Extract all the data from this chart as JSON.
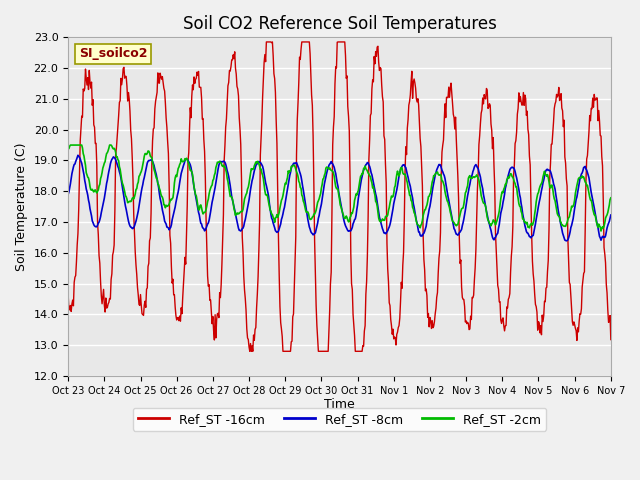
{
  "title": "Soil CO2 Reference Soil Temperatures",
  "ylabel": "Soil Temperature (C)",
  "xlabel": "Time",
  "annotation": "SI_soilco2",
  "legend_labels": [
    "Ref_ST -16cm",
    "Ref_ST -8cm",
    "Ref_ST -2cm"
  ],
  "legend_colors": [
    "#cc0000",
    "#0000cc",
    "#00bb00"
  ],
  "ylim": [
    12.0,
    23.0
  ],
  "yticks": [
    12.0,
    13.0,
    14.0,
    15.0,
    16.0,
    17.0,
    18.0,
    19.0,
    20.0,
    21.0,
    22.0,
    23.0
  ],
  "title_fontsize": 12,
  "axis_fontsize": 9,
  "tick_fontsize": 8,
  "x_tick_labels": [
    "Oct 23",
    "Oct 24",
    "Oct 25",
    "Oct 26",
    "Oct 27",
    "Oct 28",
    "Oct 29",
    "Oct 30",
    "Oct 31",
    "Nov 1",
    "Nov 2",
    "Nov 3",
    "Nov 4",
    "Nov 5",
    "Nov 6",
    "Nov 7"
  ],
  "num_days": 15,
  "points_per_day": 48
}
